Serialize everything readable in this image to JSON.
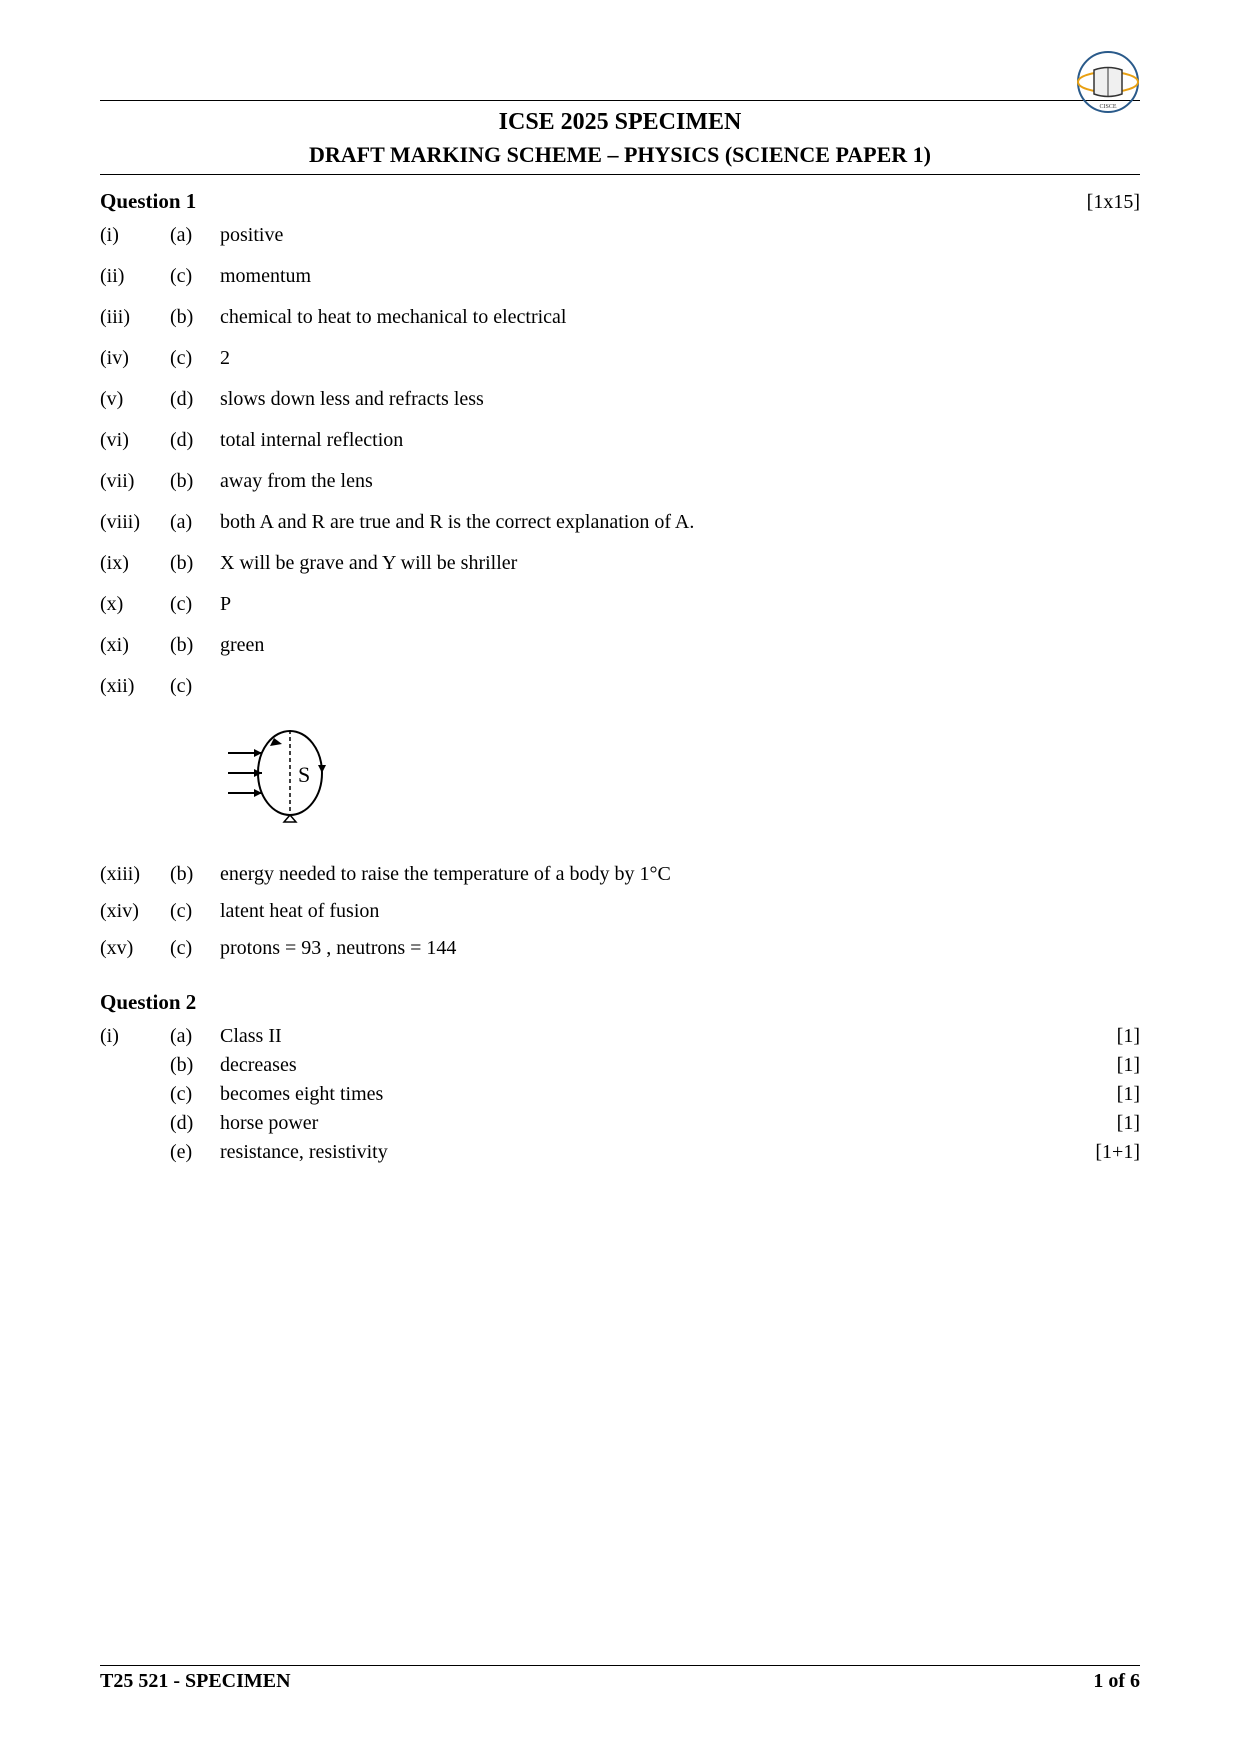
{
  "logo": {
    "alt": "CISCE logo"
  },
  "header": {
    "title": "ICSE 2025 SPECIMEN",
    "subtitle": "DRAFT MARKING SCHEME – PHYSICS (SCIENCE PAPER 1)"
  },
  "question1": {
    "title": "Question 1",
    "marks_total": "[1x15]",
    "answers": [
      {
        "roman": "(i)",
        "letter": "(a)",
        "text": "positive"
      },
      {
        "roman": "(ii)",
        "letter": "(c)",
        "text": "momentum"
      },
      {
        "roman": "(iii)",
        "letter": "(b)",
        "text": "chemical to heat to mechanical to electrical"
      },
      {
        "roman": "(iv)",
        "letter": "(c)",
        "text": "2"
      },
      {
        "roman": "(v)",
        "letter": "(d)",
        "text": "slows down less and refracts less"
      },
      {
        "roman": "(vi)",
        "letter": "(d)",
        "text": "total internal reflection"
      },
      {
        "roman": "(vii)",
        "letter": "(b)",
        "text": "away from the lens"
      },
      {
        "roman": "(viii)",
        "letter": "(a)",
        "text": "both A and R are true and R is the correct explanation of A."
      },
      {
        "roman": "(ix)",
        "letter": "(b)",
        "text": "X will be grave and Y will be shriller"
      },
      {
        "roman": "(x)",
        "letter": "(c)",
        "text": "P"
      },
      {
        "roman": "(xi)",
        "letter": "(b)",
        "text": "green"
      },
      {
        "roman": "(xii)",
        "letter": "(c)",
        "text": ""
      }
    ],
    "diagram": {
      "label": "S"
    },
    "answers_after_diagram": [
      {
        "roman": "(xiii)",
        "letter": "(b)",
        "text": "energy needed to raise the temperature of a body by 1°C"
      },
      {
        "roman": "(xiv)",
        "letter": "(c)",
        "text": "latent heat of fusion"
      },
      {
        "roman": "(xv)",
        "letter": "(c)",
        "text": "protons = 93 , neutrons = 144"
      }
    ]
  },
  "question2": {
    "title": "Question 2",
    "answers": [
      {
        "roman": "(i)",
        "letter": "(a)",
        "text": "Class II",
        "marks": "[1]"
      },
      {
        "roman": "",
        "letter": "(b)",
        "text": "decreases",
        "marks": "[1]"
      },
      {
        "roman": "",
        "letter": "(c)",
        "text": "becomes eight times",
        "marks": "[1]"
      },
      {
        "roman": "",
        "letter": "(d)",
        "text": "horse power",
        "marks": "[1]"
      },
      {
        "roman": "",
        "letter": "(e)",
        "text": "resistance, resistivity",
        "marks": "[1+1]"
      }
    ]
  },
  "footer": {
    "left": "T25 521 - SPECIMEN",
    "right": "1 of 6"
  }
}
